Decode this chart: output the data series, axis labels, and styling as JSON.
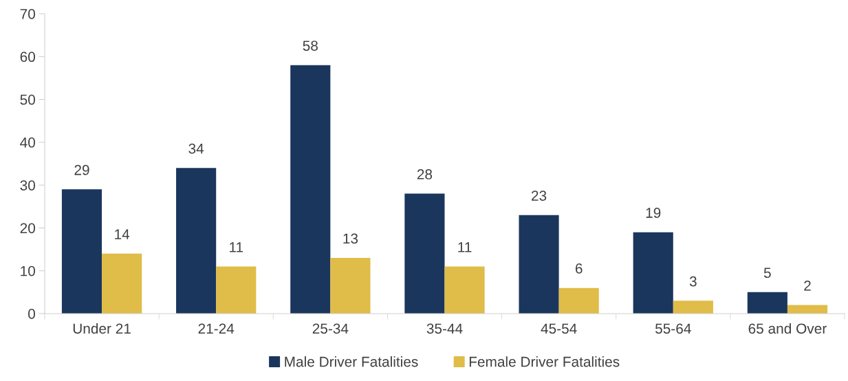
{
  "chart_data": {
    "type": "bar",
    "categories": [
      "Under 21",
      "21-24",
      "25-34",
      "35-44",
      "45-54",
      "55-64",
      "65 and Over"
    ],
    "series": [
      {
        "name": "Male Driver Fatalities",
        "color": "#1b365d",
        "values": [
          29,
          34,
          58,
          28,
          23,
          19,
          5
        ]
      },
      {
        "name": "Female Driver Fatalities",
        "color": "#e0bc48",
        "values": [
          14,
          11,
          13,
          11,
          6,
          3,
          2
        ]
      }
    ],
    "ylim": [
      0,
      70
    ],
    "yticks": [
      0,
      10,
      20,
      30,
      40,
      50,
      60,
      70
    ],
    "data_labels": true,
    "grid": false,
    "legend": "bottom"
  }
}
